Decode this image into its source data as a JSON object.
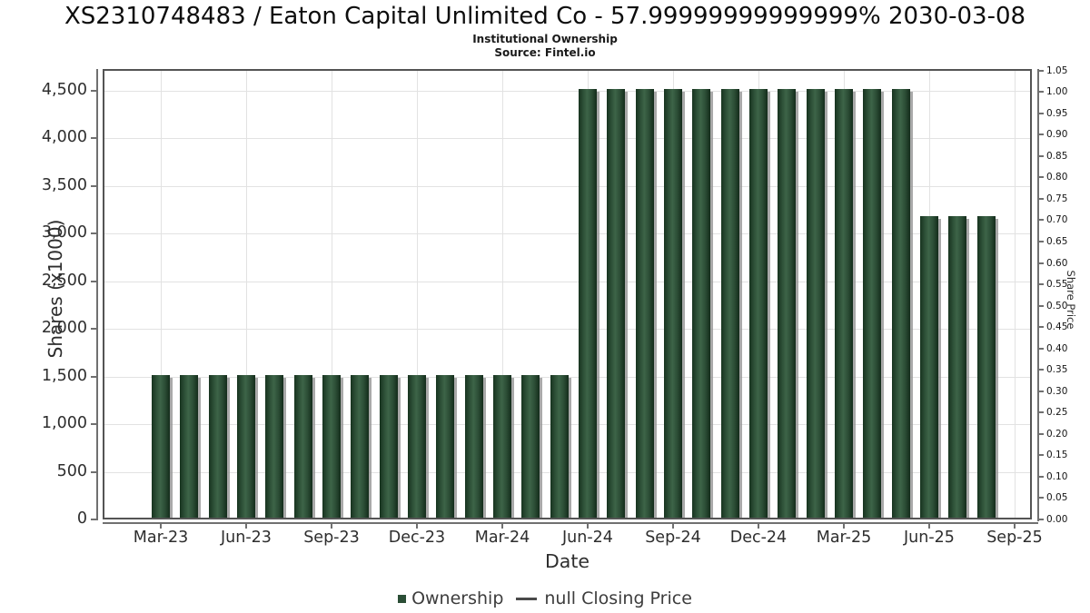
{
  "header": {
    "title": "XS2310748483 / Eaton Capital Unlimited Co - 57.99999999999999% 2030-03-08",
    "subtitle": "Institutional Ownership",
    "source": "Source: Fintel.io"
  },
  "legend": {
    "ownership_label": "Ownership",
    "price_label": "null Closing Price",
    "ownership_color": "#2b4e36",
    "line_color": "#4a4a4a"
  },
  "chart_data": {
    "type": "bar",
    "title": "XS2310748483 / Eaton Capital Unlimited Co - 57.99999999999999% 2030-03-08",
    "subtitle": "Institutional Ownership",
    "source": "Source: Fintel.io",
    "xlabel": "Date",
    "ylabel": "Shares (x1000)",
    "ylabel_right": "Share Price",
    "grid": true,
    "legend_position": "bottom",
    "bar_color": "#2b4e36",
    "bar_gradient": [
      "#17331f",
      "#3d6448",
      "#142c1b"
    ],
    "bar_shadow_color": "#949494",
    "grid_color": "#e2e2e2",
    "border_color": "#545454",
    "categories": [
      "Mar-23",
      "Apr-23",
      "May-23",
      "Jun-23",
      "Jul-23",
      "Aug-23",
      "Sep-23",
      "Oct-23",
      "Nov-23",
      "Dec-23",
      "Jan-24",
      "Feb-24",
      "Mar-24",
      "Apr-24",
      "May-24",
      "Jun-24",
      "Jul-24",
      "Aug-24",
      "Sep-24",
      "Oct-24",
      "Nov-24",
      "Dec-24",
      "Jan-25",
      "Feb-25",
      "Mar-25",
      "Apr-25",
      "May-25",
      "Jun-25",
      "Jul-25",
      "Aug-25"
    ],
    "series": [
      {
        "name": "Ownership",
        "type": "bar",
        "axis": "left",
        "values": [
          1500,
          1500,
          1500,
          1500,
          1500,
          1500,
          1500,
          1500,
          1500,
          1500,
          1500,
          1500,
          1500,
          1500,
          1500,
          4500,
          4500,
          4500,
          4500,
          4500,
          4500,
          4500,
          4500,
          4500,
          4500,
          4500,
          4500,
          3162,
          3162,
          3162
        ]
      },
      {
        "name": "null Closing Price",
        "type": "line",
        "axis": "right",
        "values": []
      }
    ],
    "ylim": [
      0,
      4725
    ],
    "ylim_right": [
      0,
      1.0535
    ],
    "yticks": [
      {
        "v": 0,
        "label": "0"
      },
      {
        "v": 500,
        "label": "500"
      },
      {
        "v": 1000,
        "label": "1,000"
      },
      {
        "v": 1500,
        "label": "1,500"
      },
      {
        "v": 2000,
        "label": "2,000"
      },
      {
        "v": 2500,
        "label": "2,500"
      },
      {
        "v": 3000,
        "label": "3,000"
      },
      {
        "v": 3500,
        "label": "3,500"
      },
      {
        "v": 4000,
        "label": "4,000"
      },
      {
        "v": 4500,
        "label": "4,500"
      }
    ],
    "yticks_right": [
      {
        "v": 0.0,
        "label": "0.00"
      },
      {
        "v": 0.05,
        "label": "0.05"
      },
      {
        "v": 0.1,
        "label": "0.10"
      },
      {
        "v": 0.15,
        "label": "0.15"
      },
      {
        "v": 0.2,
        "label": "0.20"
      },
      {
        "v": 0.25,
        "label": "0.25"
      },
      {
        "v": 0.3,
        "label": "0.30"
      },
      {
        "v": 0.35,
        "label": "0.35"
      },
      {
        "v": 0.4,
        "label": "0.40"
      },
      {
        "v": 0.45,
        "label": "0.45"
      },
      {
        "v": 0.5,
        "label": "0.50"
      },
      {
        "v": 0.55,
        "label": "0.55"
      },
      {
        "v": 0.6,
        "label": "0.60"
      },
      {
        "v": 0.65,
        "label": "0.65"
      },
      {
        "v": 0.7,
        "label": "0.70"
      },
      {
        "v": 0.75,
        "label": "0.75"
      },
      {
        "v": 0.8,
        "label": "0.80"
      },
      {
        "v": 0.85,
        "label": "0.85"
      },
      {
        "v": 0.9,
        "label": "0.90"
      },
      {
        "v": 0.95,
        "label": "0.95"
      },
      {
        "v": 1.0,
        "label": "1.00"
      },
      {
        "v": 1.05,
        "label": "1.05"
      }
    ],
    "xticks": [
      {
        "i": 0,
        "label": "Mar-23"
      },
      {
        "i": 3,
        "label": "Jun-23"
      },
      {
        "i": 6,
        "label": "Sep-23"
      },
      {
        "i": 9,
        "label": "Dec-23"
      },
      {
        "i": 12,
        "label": "Mar-24"
      },
      {
        "i": 15,
        "label": "Jun-24"
      },
      {
        "i": 18,
        "label": "Sep-24"
      },
      {
        "i": 21,
        "label": "Dec-24"
      },
      {
        "i": 24,
        "label": "Mar-25"
      },
      {
        "i": 27,
        "label": "Jun-25"
      },
      {
        "i": 30,
        "label": "Sep-25"
      }
    ]
  }
}
